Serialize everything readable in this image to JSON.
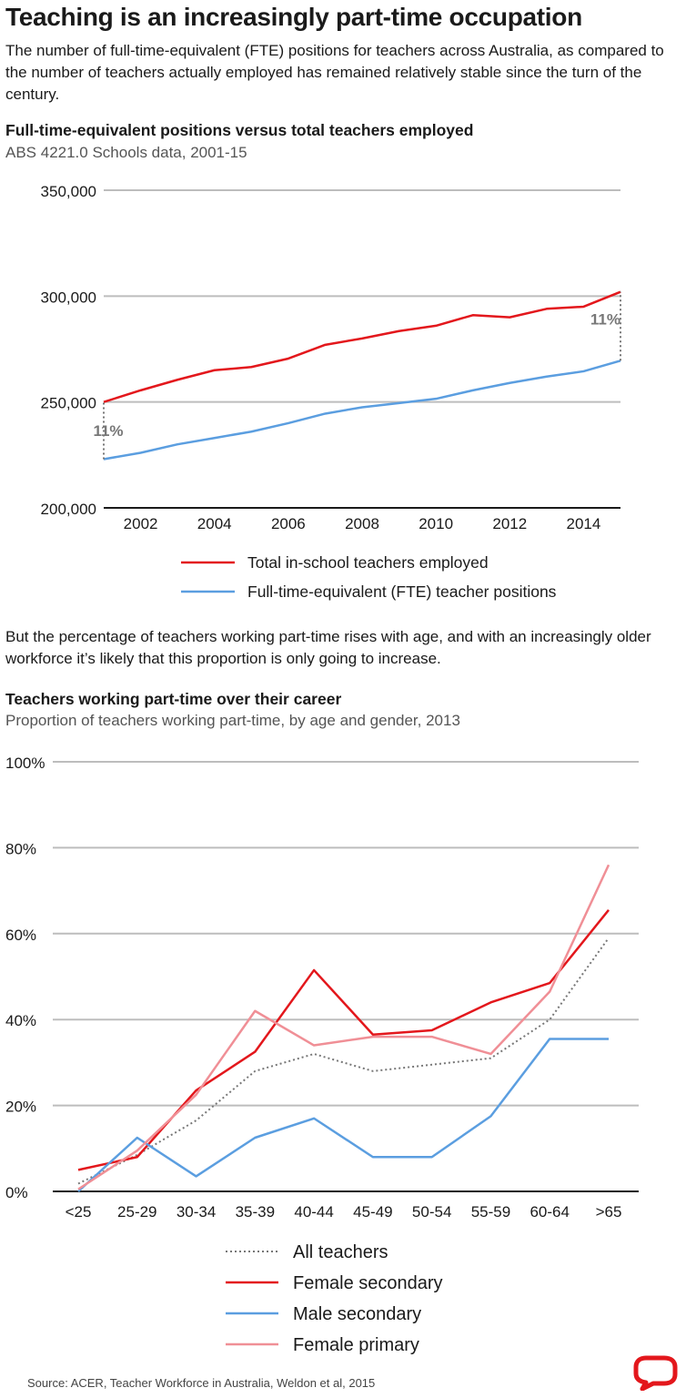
{
  "header": {
    "title": "Teaching is an increasingly part-time occupation",
    "intro": "The number of full-time-equivalent (FTE) positions for teachers across Australia, as compared to the number of teachers actually employed has remained relatively stable since the turn of the century."
  },
  "middle_text": "But the percentage of teachers working part-time rises with age, and with an increasingly older workforce it’s likely that this proportion is only going to increase.",
  "source": "Source: ACER, Teacher Workforce in Australia, Weldon et al, 2015",
  "logo_icon": "speech-bubble-logo",
  "colors": {
    "red": "#e3171c",
    "blue": "#5b9ee0",
    "pink": "#f08f96",
    "gray_dotted": "#777777",
    "grid": "#bdbdbd",
    "axis": "#1a1a1a",
    "annotation": "#777777"
  },
  "chart_data": [
    {
      "type": "line",
      "title": "Full-time-equivalent positions versus total teachers employed",
      "subtitle": "ABS 4221.0 Schools data, 2001-15",
      "x": [
        2001,
        2002,
        2003,
        2004,
        2005,
        2006,
        2007,
        2008,
        2009,
        2010,
        2011,
        2012,
        2013,
        2014,
        2015
      ],
      "xticks": [
        2002,
        2004,
        2006,
        2008,
        2010,
        2012,
        2014
      ],
      "xlim": [
        2001,
        2015
      ],
      "ylim": [
        200000,
        350000
      ],
      "yticks": [
        200000,
        250000,
        300000,
        350000
      ],
      "ytick_labels": [
        "200,000",
        "250,000",
        "300,000",
        "350,000"
      ],
      "grid": true,
      "legend": "bottom",
      "series": [
        {
          "name": "Total in-school teachers employed",
          "color": "red",
          "values": [
            250000,
            255500,
            260500,
            265000,
            266500,
            270500,
            277000,
            280000,
            283500,
            286000,
            291000,
            290000,
            294000,
            295000,
            302000
          ]
        },
        {
          "name": "Full-time-equivalent (FTE) teacher positions",
          "color": "blue",
          "values": [
            223000,
            226000,
            230000,
            233000,
            236000,
            240000,
            244500,
            247500,
            249500,
            251500,
            255500,
            259000,
            262000,
            264500,
            269500
          ]
        }
      ],
      "annotations": [
        {
          "text": "11%",
          "x": 2001,
          "y_from": 223000,
          "y_to": 250000,
          "side": "left"
        },
        {
          "text": "11%",
          "x": 2015,
          "y_from": 269500,
          "y_to": 302000,
          "side": "right"
        }
      ]
    },
    {
      "type": "line",
      "title": "Teachers working part-time over their career",
      "subtitle": "Proportion of teachers working part-time, by age and gender, 2013",
      "categories": [
        "<25",
        "25-29",
        "30-34",
        "35-39",
        "40-44",
        "45-49",
        "50-54",
        "55-59",
        "60-64",
        ">65"
      ],
      "ylim": [
        0,
        100
      ],
      "yticks": [
        0,
        20,
        40,
        60,
        80,
        100
      ],
      "ytick_labels": [
        "0%",
        "20%",
        "40%",
        "60%",
        "80%",
        "100%"
      ],
      "grid": true,
      "legend": "bottom",
      "series": [
        {
          "name": "All teachers",
          "color": "gray_dotted",
          "dashed": true,
          "values": [
            1.8,
            8.5,
            16.5,
            28,
            32,
            28,
            29.5,
            31,
            40,
            59
          ]
        },
        {
          "name": "Female secondary",
          "color": "red",
          "values": [
            5,
            8,
            23.5,
            32.5,
            51.5,
            36.5,
            37.5,
            44,
            48.5,
            65.5
          ]
        },
        {
          "name": "Male secondary",
          "color": "blue",
          "values": [
            0,
            12.5,
            3.5,
            12.5,
            17,
            8,
            8,
            17.5,
            35.5,
            35.5
          ]
        },
        {
          "name": "Female primary",
          "color": "pink",
          "values": [
            0.5,
            9.5,
            22.5,
            42,
            34,
            36,
            36,
            32,
            46.5,
            76
          ]
        }
      ]
    }
  ]
}
